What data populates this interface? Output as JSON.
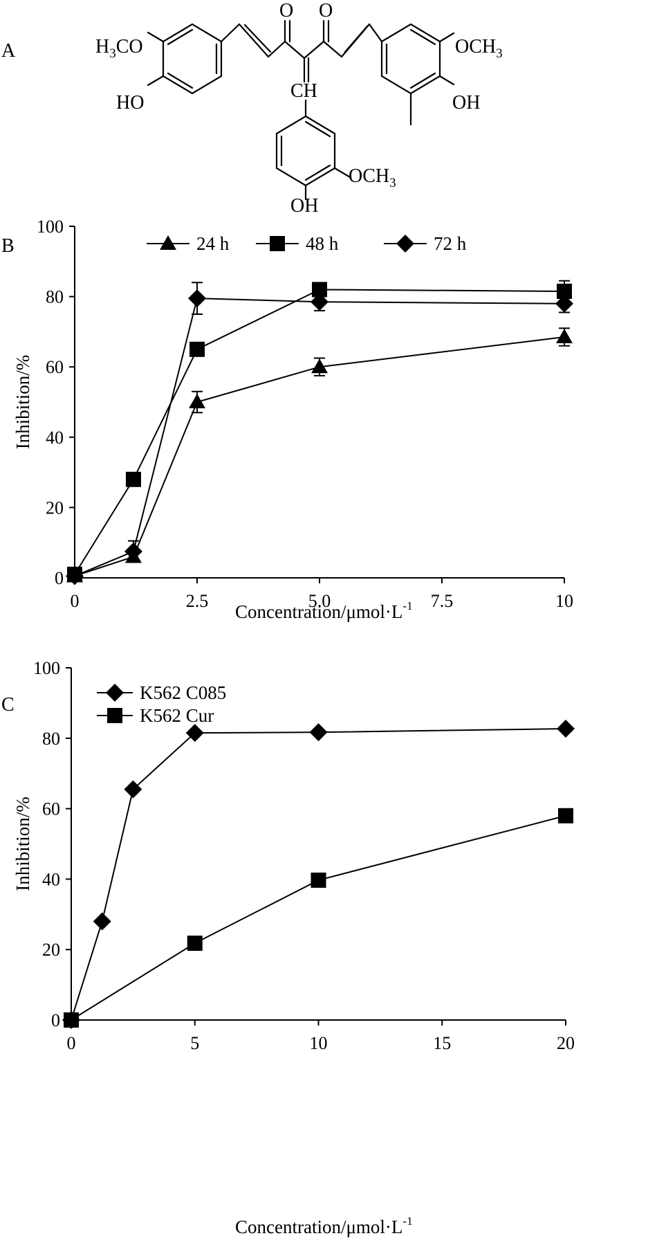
{
  "panels": {
    "a": "A",
    "b": "B",
    "c": "C"
  },
  "structure": {
    "o_left": "O",
    "o_right": "O",
    "h3co_h": "H",
    "h3co_sub": "3",
    "h3co_co": "CO",
    "ho_left": "HO",
    "ch": "CH",
    "och3_right_main": "OCH",
    "och3_right_sub": "3",
    "oh_right": "OH",
    "och3_bottom_main": "OCH",
    "och3_bottom_sub": "3",
    "oh_bottom": "OH"
  },
  "chart_data": [
    {
      "id": "B",
      "type": "line",
      "categories": [
        "0",
        "2.5",
        "5.0",
        "7.5",
        "10"
      ],
      "xlim": [
        0,
        10
      ],
      "ylim": [
        0,
        100
      ],
      "yticks": [
        "0",
        "20",
        "40",
        "60",
        "80",
        "100"
      ],
      "xlabel_main": "Concentration/μmol·L",
      "xlabel_sup": "-1",
      "ylabel": "Inhibition/%",
      "series": [
        {
          "name": "24 h",
          "marker": "triangle",
          "x": [
            0,
            1.2,
            2.5,
            5.0,
            10
          ],
          "values": [
            0.5,
            6,
            50,
            60,
            68.5
          ],
          "errors": [
            0,
            0,
            3,
            2.5,
            2.5
          ]
        },
        {
          "name": "48 h",
          "marker": "square",
          "x": [
            0,
            1.2,
            2.5,
            5.0,
            10
          ],
          "values": [
            1,
            28,
            65,
            82,
            81.5
          ],
          "errors": [
            0,
            0,
            0,
            0,
            3
          ]
        },
        {
          "name": "72 h",
          "marker": "diamond",
          "x": [
            0,
            1.2,
            2.5,
            5.0,
            10
          ],
          "values": [
            0.5,
            7.5,
            79.5,
            78.5,
            78
          ],
          "errors": [
            0,
            3,
            4.5,
            2.5,
            2.5
          ]
        }
      ]
    },
    {
      "id": "C",
      "type": "line",
      "categories": [
        "0",
        "5",
        "10",
        "15",
        "20"
      ],
      "xlim": [
        0,
        20
      ],
      "ylim": [
        0,
        100
      ],
      "yticks": [
        "0",
        "20",
        "40",
        "60",
        "80",
        "100"
      ],
      "xlabel_main": "Concentration/μmol·L",
      "xlabel_sup": "-1",
      "ylabel": "Inhibition/%",
      "series": [
        {
          "name": "K562 C085",
          "marker": "diamond",
          "x": [
            0,
            1.25,
            2.5,
            5,
            10,
            20
          ],
          "values": [
            0,
            28,
            65.5,
            81.5,
            81.7,
            82.7
          ]
        },
        {
          "name": "K562 Cur",
          "marker": "square",
          "x": [
            0,
            5,
            10,
            20
          ],
          "values": [
            0,
            21.8,
            39.7,
            58
          ]
        }
      ]
    }
  ]
}
